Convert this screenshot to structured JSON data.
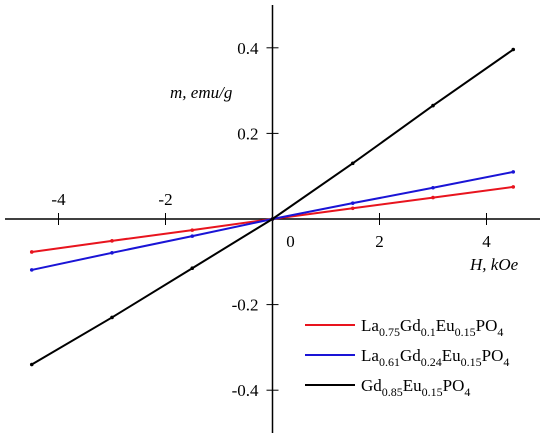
{
  "chart_data": {
    "type": "line",
    "x_label": "H, kOe",
    "y_label": "m, emu/g",
    "xlim": [
      -5,
      5
    ],
    "ylim": [
      -0.5,
      0.5
    ],
    "xticks": [
      -4,
      -2,
      0,
      2,
      4
    ],
    "yticks": [
      -0.4,
      -0.2,
      0.2,
      0.4
    ],
    "legend": "lower right",
    "x": [
      -4.5,
      -3,
      -1.5,
      0,
      1.5,
      3,
      4.5
    ],
    "series": [
      {
        "name": "La0.75Gd0.1Eu0.15PO4",
        "color": "#e8141e",
        "values": [
          -0.077,
          -0.051,
          -0.026,
          0,
          0.025,
          0.05,
          0.075
        ]
      },
      {
        "name": "La0.61Gd0.24Eu0.15PO4",
        "color": "#1a14d6",
        "values": [
          -0.119,
          -0.079,
          -0.04,
          0,
          0.037,
          0.073,
          0.11
        ]
      },
      {
        "name": "Gd0.85Eu0.15PO4",
        "color": "#000000",
        "values": [
          -0.34,
          -0.23,
          -0.115,
          0,
          0.13,
          0.265,
          0.396
        ]
      }
    ]
  }
}
